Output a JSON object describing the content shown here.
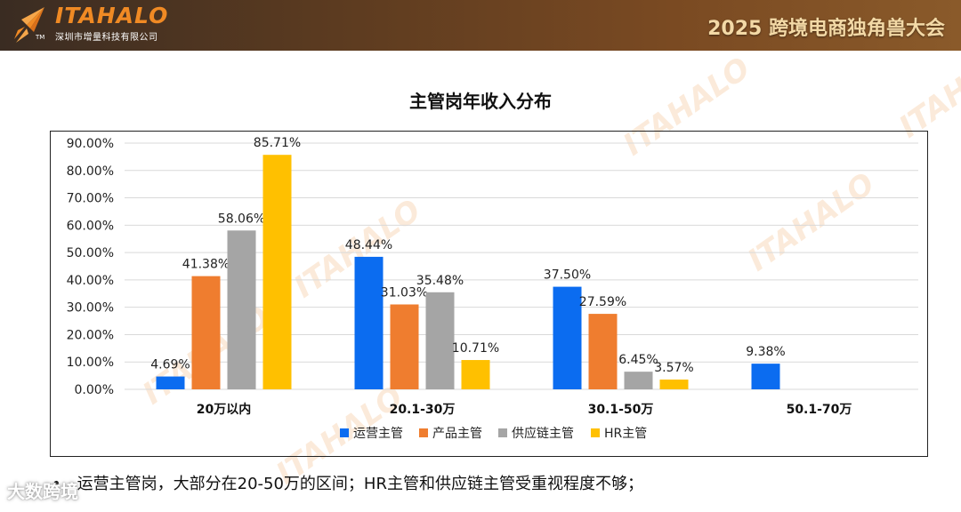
{
  "header": {
    "logo_text": "ITAHALO",
    "logo_tm": "TM",
    "company": "深圳市增量科技有限公司",
    "event_title": "2025 跨境电商独角兽大会"
  },
  "watermark_text": "ITAHALO",
  "chart_data": {
    "type": "bar",
    "title": "主管岗年收入分布",
    "categories": [
      "20万以内",
      "20.1-30万",
      "30.1-50万",
      "50.1-70万"
    ],
    "series": [
      {
        "name": "运营主管",
        "color": "#0b6cf0",
        "values": [
          4.69,
          48.44,
          37.5,
          9.38
        ],
        "labels": [
          "4.69%",
          "48.44%",
          "37.50%",
          "9.38%"
        ]
      },
      {
        "name": "产品主管",
        "color": "#ef7d2f",
        "values": [
          41.38,
          31.03,
          27.59,
          null
        ],
        "labels": [
          "41.38%",
          "31.03%",
          "27.59%",
          ""
        ]
      },
      {
        "name": "供应链主管",
        "color": "#a5a5a5",
        "values": [
          58.06,
          35.48,
          6.45,
          null
        ],
        "labels": [
          "58.06%",
          "35.48%",
          "6.45%",
          ""
        ]
      },
      {
        "name": "HR主管",
        "color": "#ffc000",
        "values": [
          85.71,
          10.71,
          3.57,
          null
        ],
        "labels": [
          "85.71%",
          "10.71%",
          "3.57%",
          ""
        ]
      }
    ],
    "ylim": [
      0,
      90
    ],
    "yticks": [
      "0.00%",
      "10.00%",
      "20.00%",
      "30.00%",
      "40.00%",
      "50.00%",
      "60.00%",
      "70.00%",
      "80.00%",
      "90.00%"
    ],
    "grid": true,
    "legend": "bottom"
  },
  "bullet": {
    "symbol": "•",
    "text": "运营主管岗，大部分在20-50万的区间；HR主管和供应链主管受重视程度不够；"
  },
  "corner_mark": "大数跨境"
}
